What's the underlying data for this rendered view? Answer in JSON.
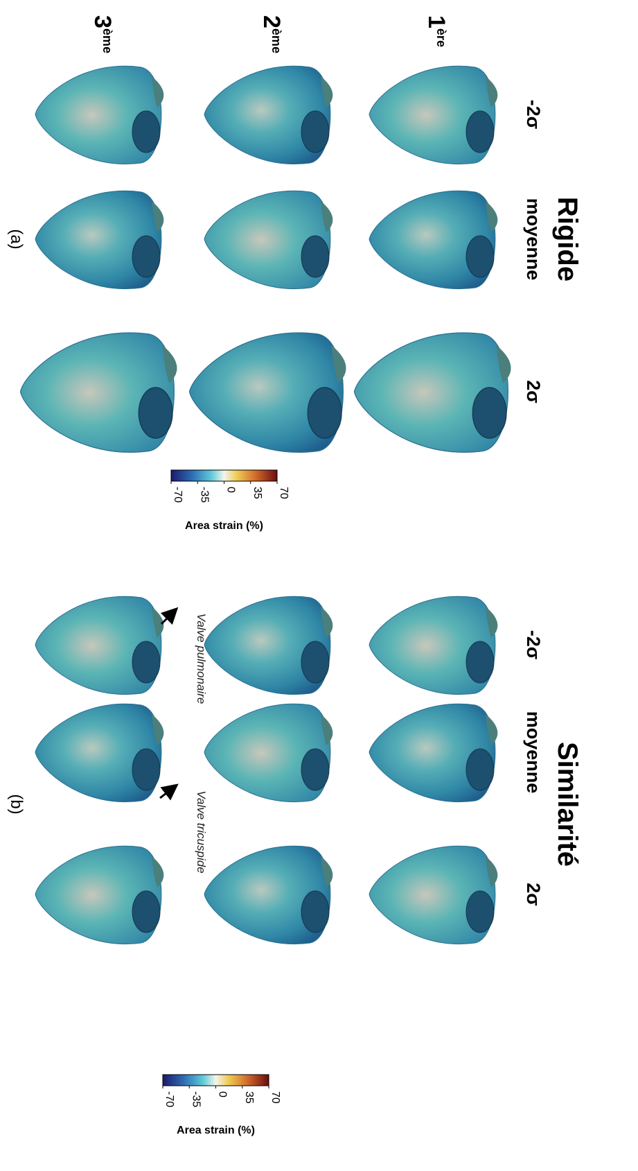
{
  "figure": {
    "rows": [
      {
        "number": "1",
        "suffix": "ère"
      },
      {
        "number": "2",
        "suffix": "ème"
      },
      {
        "number": "3",
        "suffix": "ème"
      }
    ],
    "panels": [
      {
        "title": "Rigide",
        "label": "(a)",
        "columns": [
          "-2σ",
          "moyenne",
          "2σ"
        ],
        "colorbar": {
          "ticks": [
            -70,
            -35,
            0,
            35,
            70
          ],
          "label": "Area strain (%)"
        }
      },
      {
        "title": "Similarité",
        "label": "(b)",
        "columns": [
          "-2σ",
          "moyenne",
          "2σ"
        ],
        "colorbar": {
          "ticks": [
            -70,
            -35,
            0,
            35,
            70
          ],
          "label": "Area strain (%)"
        },
        "annotations": [
          "Valve pulmonaire",
          "Valve tricuspide"
        ]
      }
    ]
  }
}
